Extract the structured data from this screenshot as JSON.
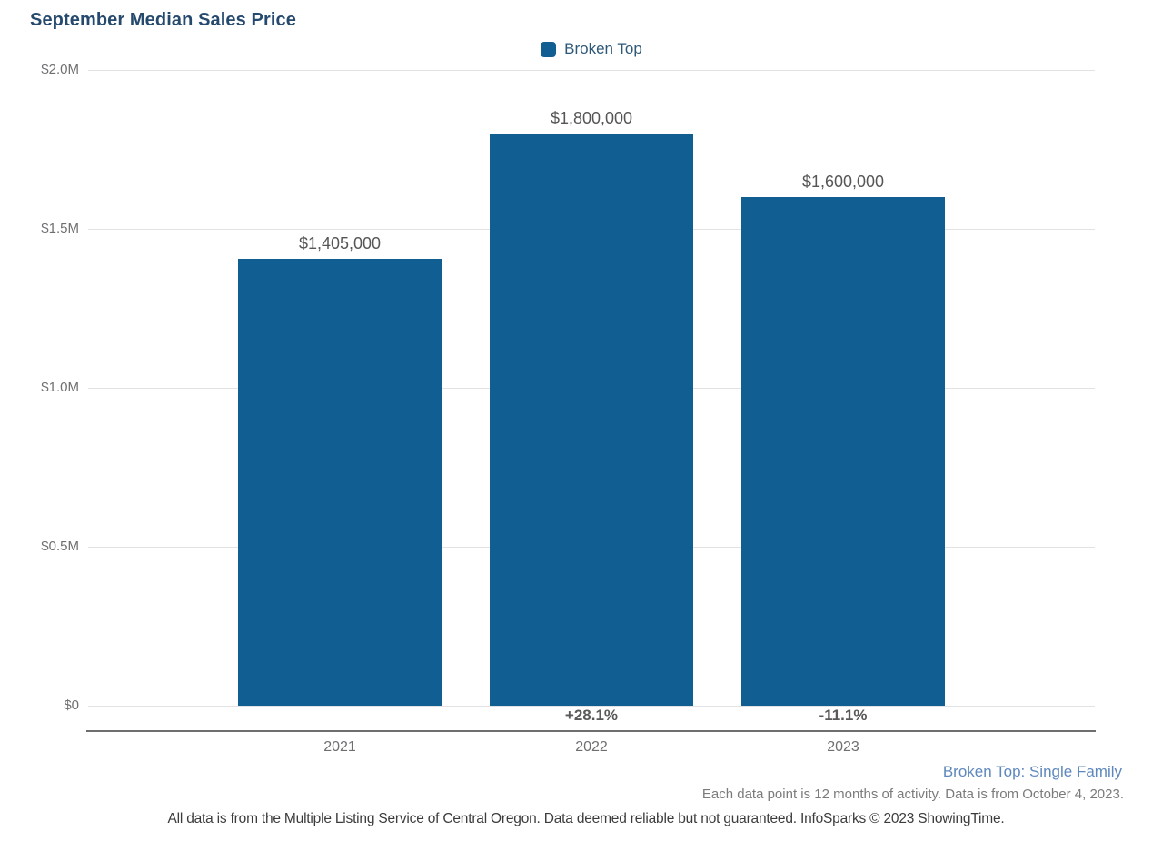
{
  "header": {
    "title": "September Median Sales Price"
  },
  "legend": {
    "items": [
      {
        "label": "Broken Top",
        "color": "#115e92"
      }
    ]
  },
  "chart_data": {
    "type": "bar",
    "title": "September Median Sales Price",
    "categories": [
      "2021",
      "2022",
      "2023"
    ],
    "series": [
      {
        "name": "Broken Top",
        "color": "#115e92",
        "values": [
          1405000,
          1800000,
          1600000
        ]
      }
    ],
    "value_labels": [
      "$1,405,000",
      "$1,800,000",
      "$1,600,000"
    ],
    "pct_change_labels": [
      "",
      "+28.1%",
      "-11.1%"
    ],
    "xlabel": "",
    "ylabel": "",
    "ylim": [
      0,
      2000000
    ],
    "yticks": [
      0,
      500000,
      1000000,
      1500000,
      2000000
    ],
    "ytick_labels": [
      "$0",
      "$0.5M",
      "$1.0M",
      "$1.5M",
      "$2.0M"
    ],
    "grid": true,
    "legend_position": "top-center"
  },
  "footnotes": {
    "series_note": "Broken Top: Single Family",
    "data_note": "Each data point is 12 months of activity. Data is from October 4, 2023.",
    "disclaimer": "All data is from the Multiple Listing Service of Central Oregon. Data deemed reliable but not guaranteed. InfoSparks © 2023 ShowingTime."
  },
  "colors": {
    "title": "#264a6e",
    "legend_text": "#2d5878",
    "bar": "#115e92",
    "value_label": "#565656",
    "pct_label": "#595959",
    "axis_label": "#6e6f72",
    "gridline": "#e2e2e2",
    "axis_line": "#6e6e6e",
    "series_note": "#5e88bd",
    "data_note": "#7b7b7b",
    "disclaimer": "#3c3c3c"
  }
}
